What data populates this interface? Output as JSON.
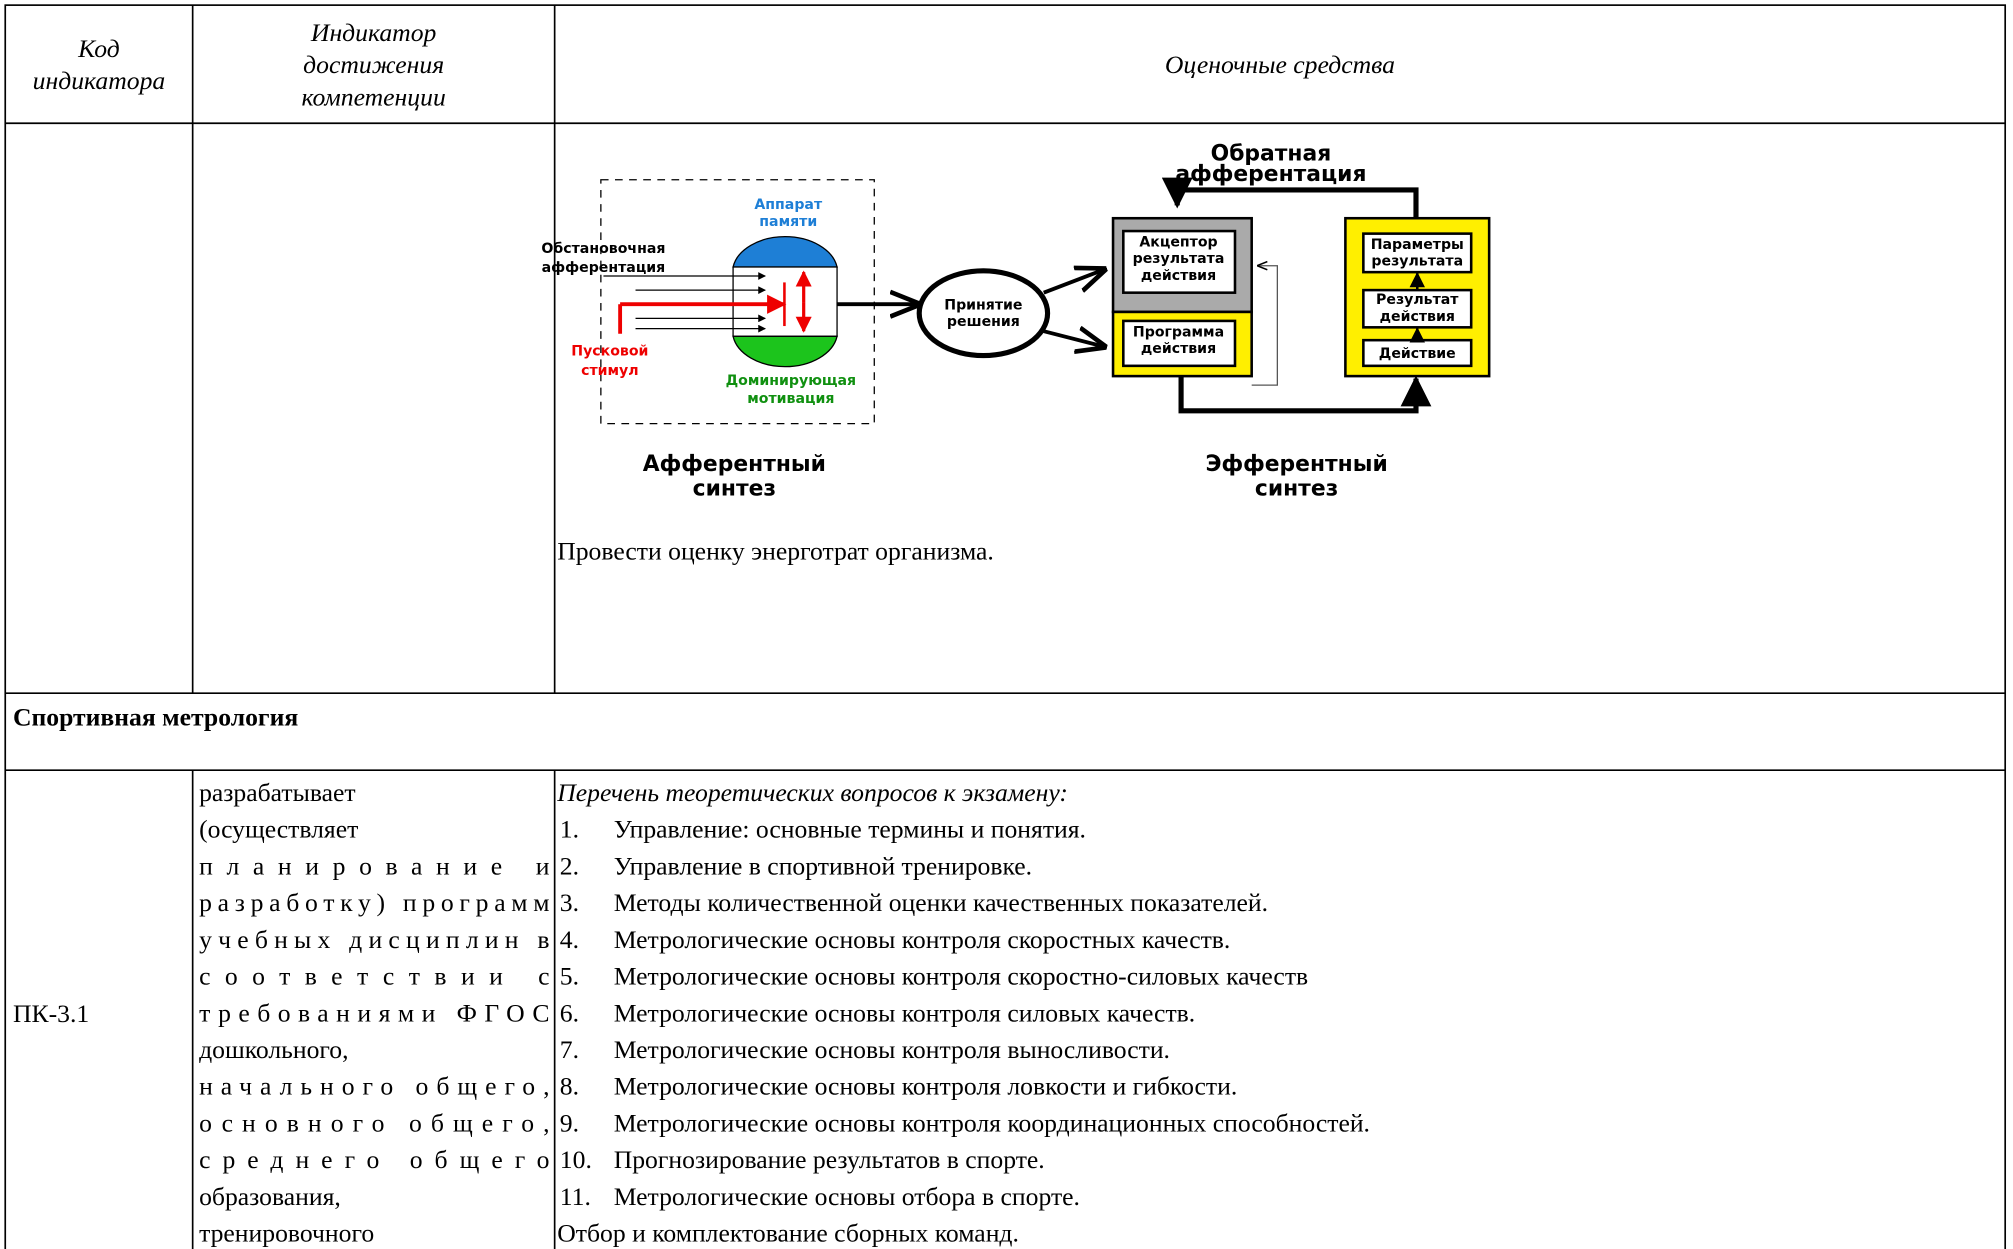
{
  "table": {
    "header": [
      [
        "Код",
        "индикатора"
      ],
      [
        "Индикатор",
        "достижения",
        "компетенции"
      ],
      [
        "Оценочные средства"
      ]
    ],
    "diagram": {
      "memory": [
        "Аппарат",
        "памяти"
      ],
      "situational": [
        "Обстановочная",
        "афферентация"
      ],
      "trigger": [
        "Пусковой",
        "стимул"
      ],
      "motivation": [
        "Доминирующая",
        "мотивация"
      ],
      "decision": [
        "Принятие",
        "решения"
      ],
      "acceptor": [
        "Акцептор",
        "результата",
        "действия"
      ],
      "program": [
        "Программа",
        "действия"
      ],
      "parameters": [
        "Параметры",
        "результата"
      ],
      "result": [
        "Результат",
        "действия"
      ],
      "action": "Действие",
      "feedback": [
        "Обратная",
        "афферентация"
      ],
      "afferent": [
        "Афферентный",
        "синтез"
      ],
      "efferent": [
        "Эфферентный",
        "синтез"
      ]
    },
    "diagram_task": "Провести оценку энерготрат организма.",
    "section": "Спортивная метрология",
    "row": {
      "code": "ПК-3.1",
      "indicator_lines": [
        "разрабатывает",
        "(осуществляет",
        "планирование и",
        "разработку) программ",
        "учебных дисциплин в",
        "соответствии с",
        "требованиями ФГОС",
        "дошкольного,",
        "начального общего,",
        "основного общего,",
        "среднего общего",
        "образования,",
        "тренировочного"
      ],
      "tools_intro": "Перечень теоретических вопросов к экзамену:",
      "items": [
        {
          "number": "1.",
          "text": "Управление: основные термины и понятия."
        },
        {
          "number": "2.",
          "text": "Управление в спортивной тренировке."
        },
        {
          "number": "3.",
          "text": "Методы количественной оценки качественных показателей."
        },
        {
          "number": "4.",
          "text": "Метрологические основы контроля скоростных качеств."
        },
        {
          "number": "5.",
          "text": "Метрологические основы контроля скоростно-силовых качеств"
        },
        {
          "number": "6.",
          "text": "Метрологические основы контроля силовых качеств."
        },
        {
          "number": "7.",
          "text": "Метрологические основы контроля выносливости."
        },
        {
          "number": "8.",
          "text": "Метрологические основы контроля ловкости и гибкости."
        },
        {
          "number": "9.",
          "text": "Метрологические основы контроля координационных способностей."
        },
        {
          "number": "10.",
          "text": "Прогнозирование результатов в спорте."
        },
        {
          "number": "11.",
          "text": "Метрологические основы отбора в спорте."
        }
      ],
      "tools_trailing": "Отбор и комплектование сборных команд."
    }
  }
}
